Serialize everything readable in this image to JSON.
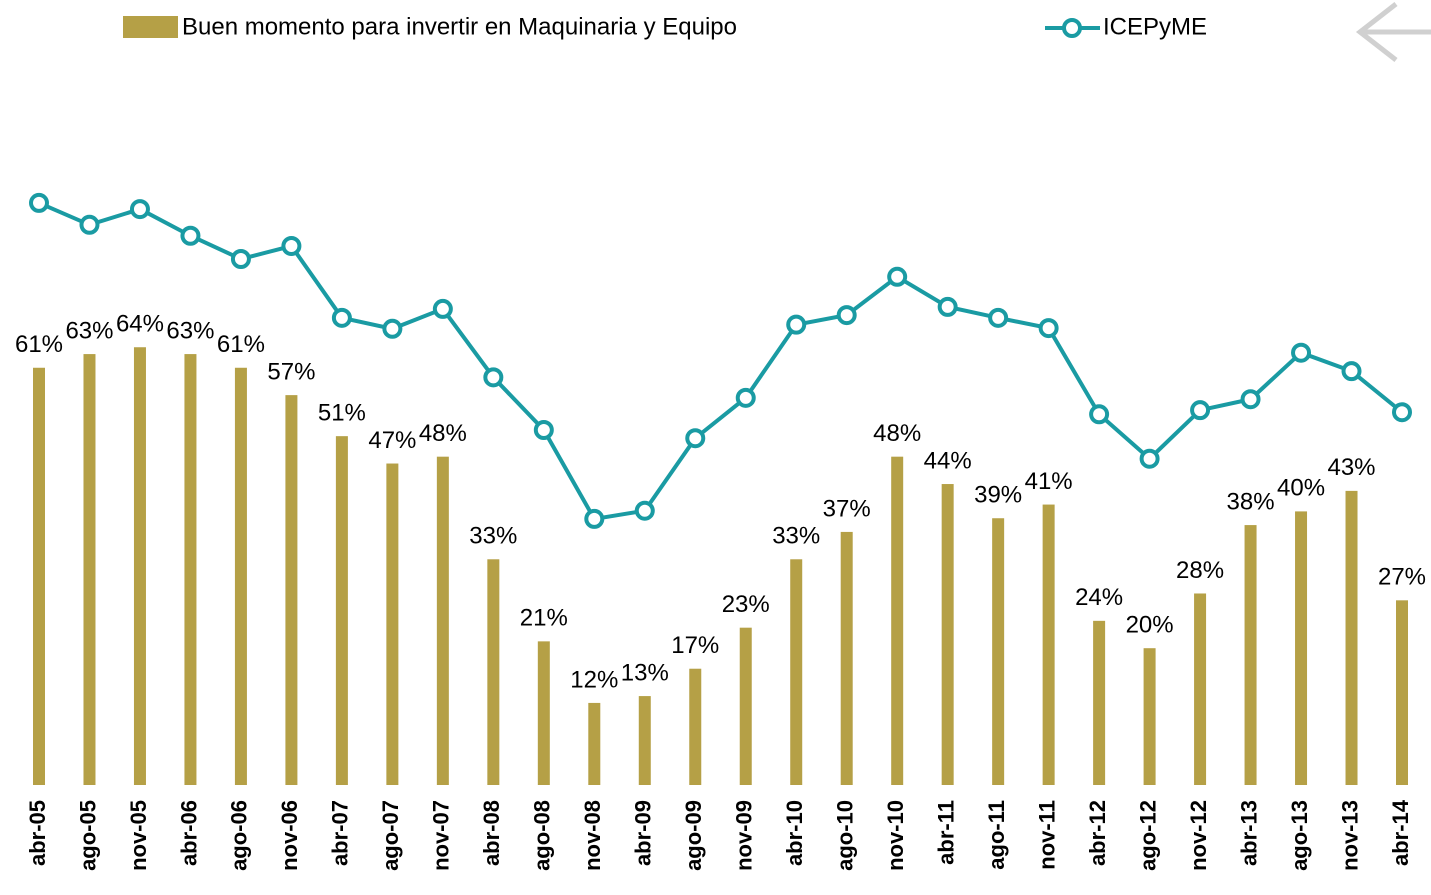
{
  "chart_data": {
    "type": "bar_line",
    "categories": [
      "abr-05",
      "ago-05",
      "nov-05",
      "abr-06",
      "ago-06",
      "nov-06",
      "abr-07",
      "ago-07",
      "nov-07",
      "abr-08",
      "ago-08",
      "nov-08",
      "abr-09",
      "ago-09",
      "nov-09",
      "abr-10",
      "ago-10",
      "nov-10",
      "abr-11",
      "ago-11",
      "nov-11",
      "abr-12",
      "ago-12",
      "nov-12",
      "abr-13",
      "ago-13",
      "nov-13",
      "abr-14"
    ],
    "series": [
      {
        "name": "Buen momento para invertir en Maquinaria y Equipo",
        "type": "bar",
        "color": "#b5a046",
        "values": [
          61,
          63,
          64,
          63,
          61,
          57,
          51,
          47,
          48,
          33,
          21,
          12,
          13,
          17,
          23,
          33,
          37,
          48,
          44,
          39,
          41,
          24,
          20,
          28,
          38,
          40,
          43,
          27
        ],
        "value_labels": [
          "61%",
          "63%",
          "64%",
          "63%",
          "61%",
          "57%",
          "51%",
          "47%",
          "48%",
          "33%",
          "21%",
          "12%",
          "13%",
          "17%",
          "23%",
          "33%",
          "37%",
          "48%",
          "44%",
          "39%",
          "41%",
          "24%",
          "20%",
          "28%",
          "38%",
          "40%",
          "43%",
          "27%"
        ]
      },
      {
        "name": "ICEPyME",
        "type": "line",
        "color": "#1a9ba3",
        "axis": "y2",
        "values": [
          85.1,
          81.9,
          84.2,
          80.3,
          76.9,
          78.8,
          68.3,
          66.7,
          69.6,
          59.6,
          51.9,
          38.9,
          40.1,
          50.7,
          56.6,
          67.3,
          68.7,
          74.3,
          69.9,
          68.3,
          66.8,
          54.2,
          47.7,
          54.8,
          56.4,
          63.2,
          60.5,
          54.5
        ]
      }
    ],
    "ylim": [
      0,
      100
    ],
    "y2lim": [
      0,
      100
    ]
  }
}
